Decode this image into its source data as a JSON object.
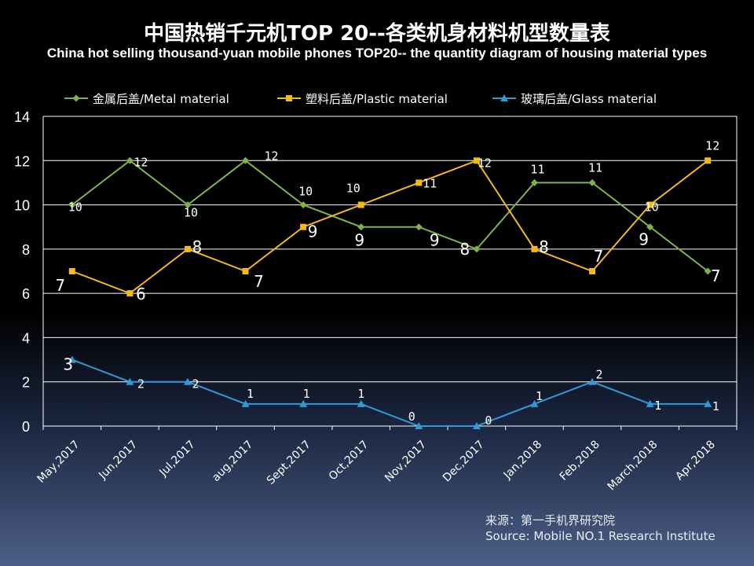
{
  "title": "中国热销千元机TOP 20--各类机身材料机型数量表",
  "subtitle": "China hot selling thousand-yuan mobile phones TOP20-- the quantity diagram of housing material types",
  "source": {
    "line1": "来源：第一手机界研究院",
    "line2": "Source: Mobile NO.1 Research Institute"
  },
  "chart_data": {
    "type": "line",
    "categories": [
      "May,2017",
      "Jun,2017",
      "Jul,2017",
      "aug,2017",
      "Sept,2017",
      "Oct,2017",
      "Nov,2017",
      "Dec,2017",
      "Jan,2018",
      "Feb,2018",
      "March,2018",
      "Apr,2018"
    ],
    "ylim": [
      0,
      14
    ],
    "yticks": [
      "0",
      "2",
      "4",
      "6",
      "8",
      "10",
      "12",
      "14"
    ],
    "grid": true,
    "legend_position": "top",
    "series": [
      {
        "name": "金属后盖/Metal material",
        "color": "#7fb34a",
        "marker": "diamond",
        "values": [
          10,
          12,
          10,
          12,
          10,
          9,
          9,
          8,
          11,
          11,
          9,
          7
        ],
        "labels": [
          "10",
          "12",
          "10",
          "12",
          "10",
          "9",
          "9",
          "8",
          "11",
          "11",
          "9",
          "7"
        ]
      },
      {
        "name": "塑料后盖/Plastic material",
        "color": "#f6b81c",
        "marker": "square",
        "values": [
          7,
          6,
          8,
          7,
          9,
          10,
          11,
          12,
          8,
          7,
          10,
          12
        ],
        "labels": [
          "7",
          "6",
          "8",
          "7",
          "9",
          "10",
          "11",
          "12",
          "8",
          "7",
          "10",
          "12"
        ]
      },
      {
        "name": "玻璃后盖/Glass material",
        "color": "#2f9ad6",
        "marker": "triangle",
        "values": [
          3,
          2,
          2,
          1,
          1,
          1,
          0,
          0,
          1,
          2,
          1,
          1
        ],
        "labels": [
          "3",
          "2",
          "2",
          "1",
          "1",
          "1",
          "0",
          "0",
          "1",
          "2",
          "1",
          "1"
        ]
      }
    ]
  }
}
